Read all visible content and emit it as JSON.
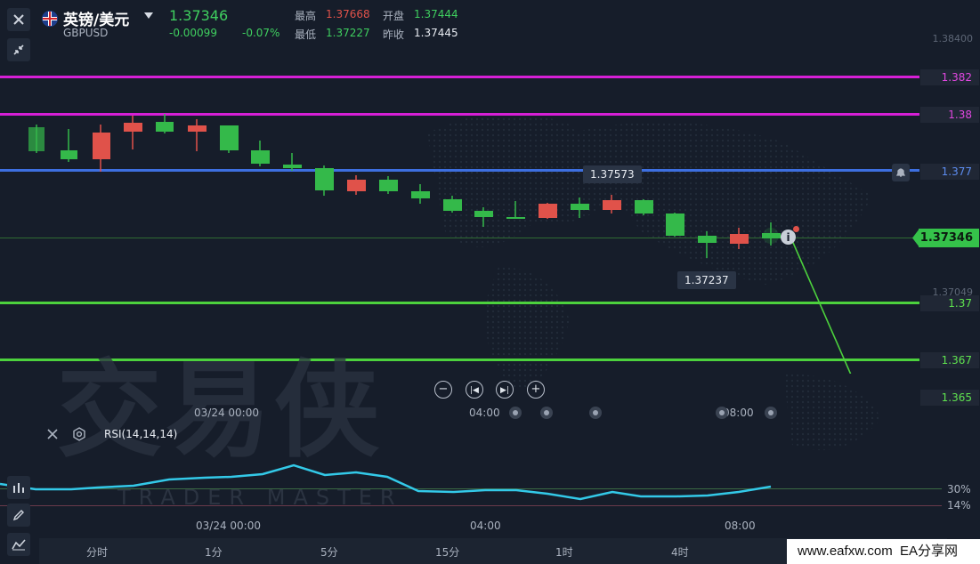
{
  "header": {
    "symbol_name": "英镑/美元",
    "symbol_code": "GBPUSD",
    "price": "1.37346",
    "change": "-0.00099",
    "change_pct": "-0.07%",
    "high_label": "最高",
    "high_value": "1.37668",
    "low_label": "最低",
    "low_value": "1.37227",
    "open_label": "开盘",
    "open_value": "1.37444",
    "prev_close_label": "昨收",
    "prev_close_value": "1.37445"
  },
  "price_axis": {
    "top_tick": "1.38400",
    "mid_tick": "1.37049",
    "current_price": "1.37346"
  },
  "price_lines": [
    {
      "label": "1.382",
      "color": "#d61fd6"
    },
    {
      "label": "1.38",
      "color": "#d61fd6"
    },
    {
      "label": "1.377",
      "color": "#3d6fe0"
    },
    {
      "label": "1.37",
      "color": "#4cd13d"
    },
    {
      "label": "1.367",
      "color": "#4cd13d"
    },
    {
      "label": "1.365",
      "color": "#4cd13d"
    }
  ],
  "tooltips": {
    "high": "1.37573",
    "low": "1.37237"
  },
  "time_axis": {
    "t1": "03/24 00:00",
    "t2": "04:00",
    "t3": "08:00"
  },
  "indicator": {
    "name": "RSI(14,14,14)",
    "level_high": "30%",
    "level_low": "14%"
  },
  "timeframes": [
    "分时",
    "1分",
    "5分",
    "15分",
    "1时",
    "4时"
  ],
  "watermark": {
    "main": "交易侠",
    "sub": "TRADER MASTER",
    "footer": "www.eafxw.com  EA分享网"
  },
  "colors": {
    "bull": "#34b94a",
    "bear": "#e0524a",
    "rsi": "#33c9e8",
    "background": "#161d2a"
  },
  "icons": [
    "close-icon",
    "flag-icon",
    "collapse-icon",
    "zoom-out-icon",
    "skip-back-icon",
    "skip-forward-icon",
    "zoom-in-icon",
    "settings-icon",
    "bell-icon",
    "info-icon",
    "draw-icon",
    "indicator-icon"
  ]
}
